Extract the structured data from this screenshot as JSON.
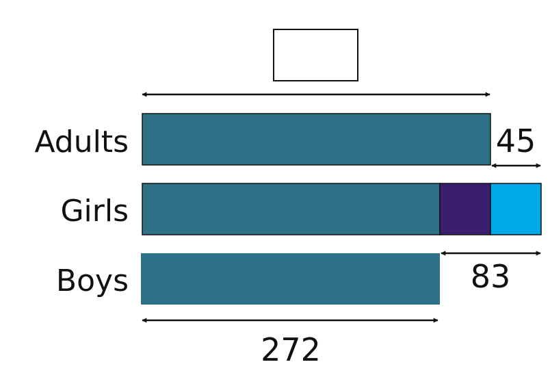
{
  "diagram": {
    "answer_box": "",
    "rows": [
      {
        "label": "Adults"
      },
      {
        "label": "Girls"
      },
      {
        "label": "Boys"
      }
    ],
    "measures": {
      "adults_extra": "45",
      "girls_extra": "83",
      "boys_length": "272"
    },
    "colors": {
      "main": "#2e7187",
      "girls_purple": "#3c1e6e",
      "girls_blue": "#00a8e8",
      "line": "#111111"
    }
  }
}
